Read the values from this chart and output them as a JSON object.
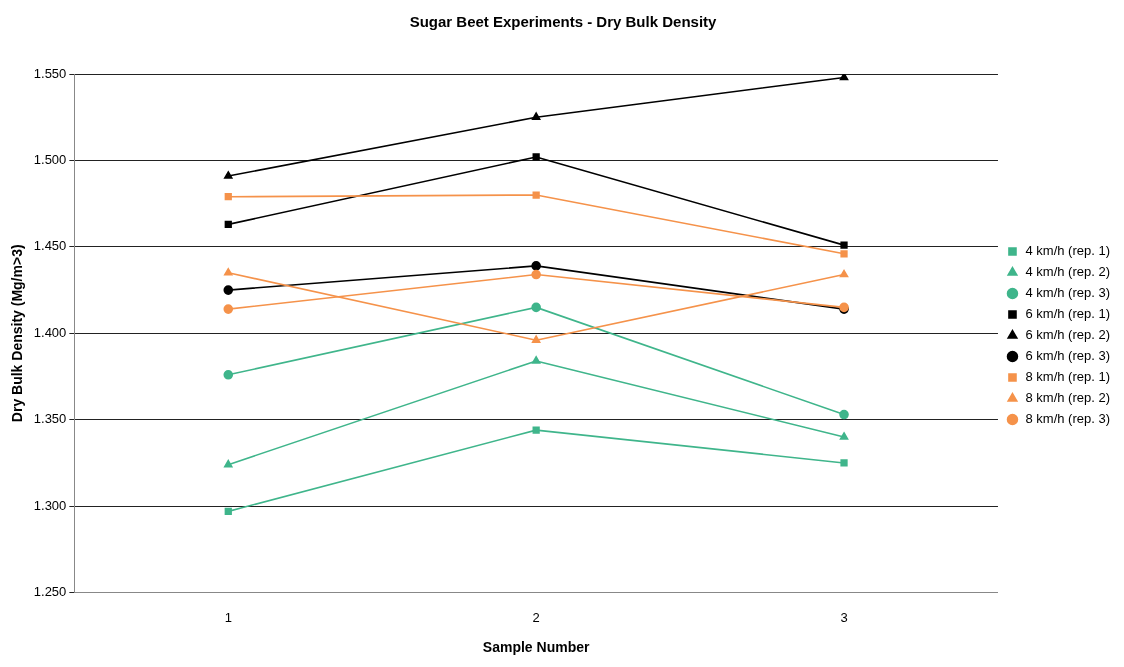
{
  "chart_data": {
    "type": "line",
    "title": "Sugar Beet Experiments - Dry Bulk Density",
    "xlabel": "Sample Number",
    "ylabel": "Dry Bulk Density (Mg/m>3)",
    "categories": [
      "1",
      "2",
      "3"
    ],
    "ylim": [
      1.25,
      1.55
    ],
    "yticks": [
      {
        "value": 1.25,
        "label": "1.250"
      },
      {
        "value": 1.3,
        "label": "1.300"
      },
      {
        "value": 1.35,
        "label": "1.350"
      },
      {
        "value": 1.4,
        "label": "1.400"
      },
      {
        "value": 1.45,
        "label": "1.450"
      },
      {
        "value": 1.5,
        "label": "1.500"
      },
      {
        "value": 1.55,
        "label": "1.550"
      }
    ],
    "grid": "y",
    "legend": "right",
    "line_style": "solid",
    "series": [
      {
        "name": "4 km/h (rep. 1)",
        "color": "#3fb58b",
        "marker": "square",
        "values": [
          1.297,
          1.344,
          1.325
        ]
      },
      {
        "name": "4 km/h (rep. 2)",
        "color": "#3fb58b",
        "marker": "triangle",
        "values": [
          1.324,
          1.384,
          1.34
        ]
      },
      {
        "name": "4 km/h (rep. 3)",
        "color": "#3fb58b",
        "marker": "circle",
        "values": [
          1.376,
          1.415,
          1.353
        ]
      },
      {
        "name": "6 km/h (rep. 1)",
        "color": "#000000",
        "marker": "square",
        "values": [
          1.463,
          1.502,
          1.451
        ]
      },
      {
        "name": "6 km/h (rep. 2)",
        "color": "#000000",
        "marker": "triangle",
        "values": [
          1.491,
          1.525,
          1.548
        ]
      },
      {
        "name": "6 km/h (rep. 3)",
        "color": "#000000",
        "marker": "circle",
        "values": [
          1.425,
          1.439,
          1.414
        ]
      },
      {
        "name": "8 km/h (rep. 1)",
        "color": "#f5924a",
        "marker": "square",
        "values": [
          1.479,
          1.48,
          1.446
        ]
      },
      {
        "name": "8 km/h (rep. 2)",
        "color": "#f5924a",
        "marker": "triangle",
        "values": [
          1.435,
          1.396,
          1.434
        ]
      },
      {
        "name": "8 km/h (rep. 3)",
        "color": "#f5924a",
        "marker": "circle",
        "values": [
          1.414,
          1.434,
          1.415
        ]
      }
    ]
  }
}
